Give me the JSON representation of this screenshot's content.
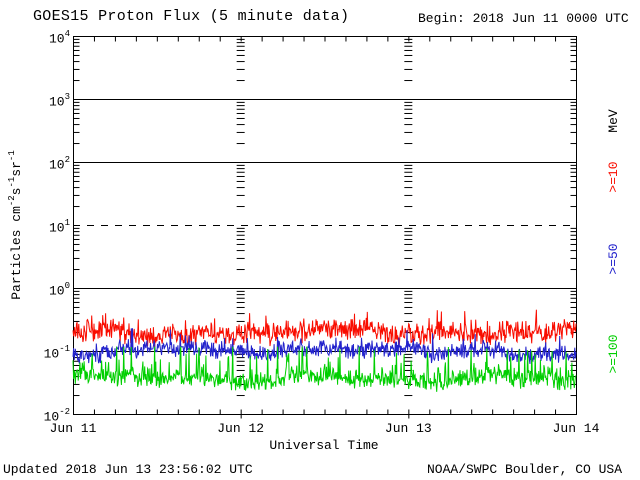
{
  "header": {
    "title": "GOES15 Proton Flux (5 minute data)",
    "begin": "Begin: 2018 Jun 11 0000 UTC"
  },
  "footer": {
    "updated": "Updated 2018 Jun 13 23:56:02 UTC",
    "source": "NOAA/SWPC Boulder, CO USA"
  },
  "chart_data": {
    "type": "line",
    "title": "GOES15 Proton Flux (5 minute data)",
    "begin_time": "2018 Jun 11 0000 UTC",
    "updated_time": "2018 Jun 13 23:56:02 UTC",
    "xlabel": "Universal Time",
    "ylabel": "Particles cm-2s-1sr-1",
    "ylabel_segments": [
      {
        "text": "Particles cm"
      },
      {
        "sup": "-2"
      },
      {
        "text": "s"
      },
      {
        "sup": "-1"
      },
      {
        "text": "sr"
      },
      {
        "sup": "-1"
      }
    ],
    "y_scale": "log",
    "ylim": [
      0.01,
      10000
    ],
    "y_tick_exponents": [
      4,
      3,
      2,
      1,
      0,
      -1,
      -2
    ],
    "dashed_gridline_exponent": 1,
    "solid_gridline_exponents": [
      3,
      2,
      0,
      -1
    ],
    "x_ticks": [
      "Jun 11",
      "Jun 12",
      "Jun 13",
      "Jun 14"
    ],
    "x_minor_tick_hours": 3,
    "duration_days": 3,
    "cadence_minutes": 5,
    "unit_label": "MeV",
    "grid": "decade lines horizontal; minor-tick ladder at each day boundary",
    "legend_position": "right, rotated",
    "series": [
      {
        "name": "Protons >=10 MeV",
        "legend": ">=10",
        "color": "#f90d00",
        "approx_mean_flux": 0.2,
        "approx_range": [
          0.09,
          0.45
        ],
        "sim": {
          "base": -0.7,
          "jitter": 0.2,
          "spike_prob": 0.12,
          "spike_amp": 0.25,
          "clamp": [
            -0.98,
            -0.34
          ],
          "seed": 11
        }
      },
      {
        "name": "Protons >=50 MeV",
        "legend": ">=50",
        "color": "#2222cc",
        "approx_mean_flux": 0.1,
        "approx_range": [
          0.055,
          0.22
        ],
        "sim": {
          "base": -1.01,
          "jitter": 0.16,
          "spike_prob": 0.07,
          "spike_amp": 0.28,
          "clamp": [
            -1.26,
            -0.64
          ],
          "seed": 22
        }
      },
      {
        "name": "Protons >=100 MeV",
        "legend": ">=100",
        "color": "#00cf00",
        "approx_mean_flux": 0.04,
        "approx_range": [
          0.022,
          0.12
        ],
        "sim": {
          "base": -1.43,
          "jitter": 0.18,
          "spike_prob": 0.15,
          "spike_amp": 0.48,
          "clamp": [
            -1.65,
            -0.93
          ],
          "seed": 33
        }
      }
    ]
  }
}
